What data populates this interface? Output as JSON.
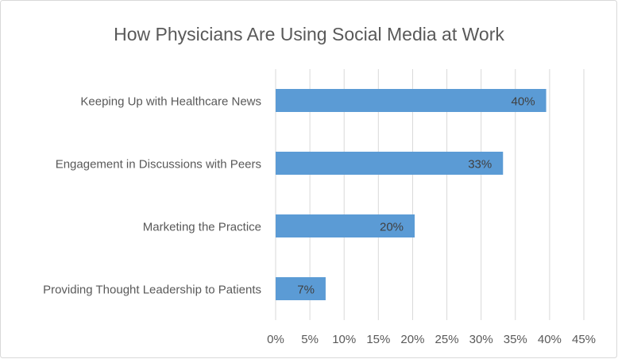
{
  "chart_data": {
    "type": "bar",
    "orientation": "horizontal",
    "title": "How Physicians Are Using Social Media at Work",
    "categories": [
      "Keeping Up with Healthcare News",
      "Engagement in Discussions with Peers",
      "Marketing the Practice",
      "Providing Thought Leadership to Patients"
    ],
    "values": [
      39.5,
      33.2,
      20.3,
      7.3
    ],
    "value_labels": [
      "40%",
      "33%",
      "20%",
      "7%"
    ],
    "color": "#5b9bd5",
    "xlim": [
      0,
      45
    ],
    "xticks": [
      {
        "value": 0,
        "label": "0%"
      },
      {
        "value": 5,
        "label": "5%"
      },
      {
        "value": 10,
        "label": "10%"
      },
      {
        "value": 15,
        "label": "15%"
      },
      {
        "value": 20,
        "label": "20%"
      },
      {
        "value": 25,
        "label": "25%"
      },
      {
        "value": 30,
        "label": "30%"
      },
      {
        "value": 35,
        "label": "35%"
      },
      {
        "value": 40,
        "label": "40%"
      },
      {
        "value": 45,
        "label": "45%"
      }
    ],
    "grid": true
  }
}
